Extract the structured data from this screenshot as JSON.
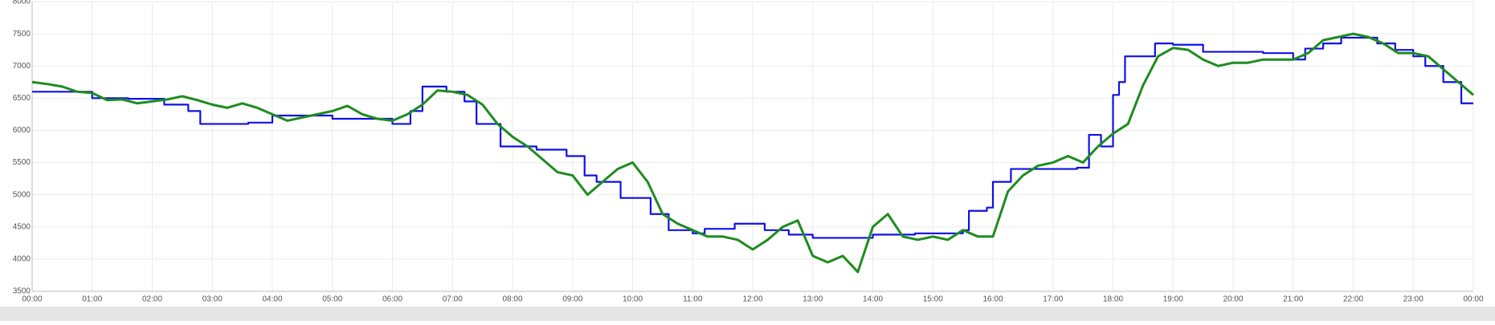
{
  "chart_data": {
    "type": "line",
    "xlim": [
      0,
      24
    ],
    "xticks": [
      {
        "value": 0,
        "label": "00:00"
      },
      {
        "value": 1,
        "label": "01:00"
      },
      {
        "value": 2,
        "label": "02:00"
      },
      {
        "value": 3,
        "label": "03:00"
      },
      {
        "value": 4,
        "label": "04:00"
      },
      {
        "value": 5,
        "label": "05:00"
      },
      {
        "value": 6,
        "label": "06:00"
      },
      {
        "value": 7,
        "label": "07:00"
      },
      {
        "value": 8,
        "label": "08:00"
      },
      {
        "value": 9,
        "label": "09:00"
      },
      {
        "value": 10,
        "label": "10:00"
      },
      {
        "value": 11,
        "label": "11:00"
      },
      {
        "value": 12,
        "label": "12:00"
      },
      {
        "value": 13,
        "label": "13:00"
      },
      {
        "value": 14,
        "label": "14:00"
      },
      {
        "value": 15,
        "label": "15:00"
      },
      {
        "value": 16,
        "label": "16:00"
      },
      {
        "value": 17,
        "label": "17:00"
      },
      {
        "value": 18,
        "label": "18:00"
      },
      {
        "value": 19,
        "label": "19:00"
      },
      {
        "value": 20,
        "label": "20:00"
      },
      {
        "value": 21,
        "label": "21:00"
      },
      {
        "value": 22,
        "label": "22:00"
      },
      {
        "value": 23,
        "label": "23:00"
      },
      {
        "value": 24,
        "label": "00:00"
      }
    ],
    "ylim": [
      3500,
      8000
    ],
    "yticks": [
      3500,
      4000,
      4500,
      5000,
      5500,
      6000,
      6500,
      7000,
      7500,
      8000
    ],
    "grid": true,
    "series": [
      {
        "color": "#1010e8",
        "step": true,
        "x": [
          0,
          1,
          1.6,
          2.2,
          2.6,
          2.8,
          3.6,
          4,
          5,
          6,
          6.3,
          6.5,
          6.9,
          7.2,
          7.4,
          7.8,
          8.4,
          8.9,
          9.2,
          9.4,
          9.8,
          10.3,
          10.6,
          11,
          11.2,
          11.7,
          12.2,
          12.6,
          13,
          14,
          14.7,
          15.5,
          15.6,
          15.9,
          16,
          16.3,
          17.4,
          17.6,
          17.8,
          18,
          18.1,
          18.2,
          18.7,
          19,
          19.5,
          20.5,
          21,
          21.2,
          21.5,
          21.8,
          22.4,
          22.7,
          23,
          23.2,
          23.5,
          23.8,
          24
        ],
        "values": [
          6600,
          6500,
          6490,
          6400,
          6300,
          6100,
          6120,
          6230,
          6180,
          6100,
          6300,
          6680,
          6600,
          6450,
          6100,
          5750,
          5700,
          5600,
          5300,
          5200,
          4950,
          4700,
          4450,
          4400,
          4470,
          4550,
          4450,
          4380,
          4330,
          4380,
          4400,
          4450,
          4750,
          4800,
          5200,
          5400,
          5420,
          5930,
          5750,
          6550,
          6750,
          7150,
          7350,
          7330,
          7220,
          7200,
          7100,
          7270,
          7350,
          7440,
          7350,
          7250,
          7150,
          7000,
          6750,
          6420,
          6420
        ]
      },
      {
        "color": "#1e8c1e",
        "x": [
          0,
          0.25,
          0.5,
          0.75,
          1,
          1.25,
          1.5,
          1.75,
          2,
          2.25,
          2.5,
          2.75,
          3,
          3.25,
          3.5,
          3.75,
          4,
          4.25,
          4.5,
          4.75,
          5,
          5.25,
          5.5,
          5.75,
          6,
          6.25,
          6.5,
          6.75,
          7,
          7.25,
          7.5,
          7.75,
          8,
          8.25,
          8.5,
          8.75,
          9,
          9.25,
          9.5,
          9.75,
          10,
          10.25,
          10.5,
          10.75,
          11,
          11.25,
          11.5,
          11.75,
          12,
          12.25,
          12.5,
          12.75,
          13,
          13.25,
          13.5,
          13.75,
          14,
          14.25,
          14.5,
          14.75,
          15,
          15.25,
          15.5,
          15.75,
          16,
          16.25,
          16.5,
          16.75,
          17,
          17.25,
          17.5,
          17.75,
          18,
          18.25,
          18.5,
          18.75,
          19,
          19.25,
          19.5,
          19.75,
          20,
          20.25,
          20.5,
          20.75,
          21,
          21.25,
          21.5,
          21.75,
          22,
          22.25,
          22.5,
          22.75,
          23,
          23.25,
          23.5,
          23.75,
          24
        ],
        "values": [
          6750,
          6720,
          6680,
          6600,
          6580,
          6470,
          6480,
          6420,
          6450,
          6480,
          6530,
          6470,
          6400,
          6350,
          6420,
          6350,
          6250,
          6150,
          6200,
          6250,
          6300,
          6380,
          6250,
          6180,
          6150,
          6250,
          6400,
          6620,
          6600,
          6550,
          6400,
          6100,
          5900,
          5750,
          5550,
          5350,
          5300,
          5000,
          5200,
          5400,
          5500,
          5200,
          4700,
          4550,
          4450,
          4350,
          4350,
          4300,
          4150,
          4300,
          4500,
          4600,
          4050,
          3950,
          4050,
          3800,
          4500,
          4700,
          4350,
          4300,
          4350,
          4300,
          4450,
          4350,
          4350,
          5050,
          5300,
          5450,
          5500,
          5600,
          5500,
          5750,
          5950,
          6100,
          6700,
          7150,
          7280,
          7250,
          7100,
          7000,
          7050,
          7050,
          7100,
          7100,
          7100,
          7200,
          7400,
          7450,
          7500,
          7450,
          7350,
          7200,
          7200,
          7150,
          6950,
          6750,
          6550
        ]
      }
    ]
  }
}
